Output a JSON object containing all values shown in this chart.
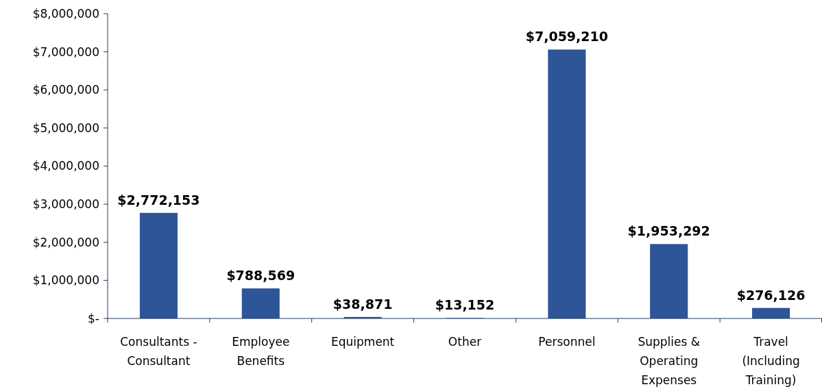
{
  "chart_data": {
    "type": "bar",
    "categories": [
      "Consultants - Consultant",
      "Employee Benefits",
      "Equipment",
      "Other",
      "Personnel",
      "Supplies & Operating Expenses",
      "Travel (Including Training)"
    ],
    "values": [
      2772153,
      788569,
      38871,
      13152,
      7059210,
      1953292,
      276126
    ],
    "value_labels": [
      "$2,772,153",
      "$788,569",
      "$38,871",
      "$13,152",
      "$7,059,210",
      "$1,953,292",
      "$276,126"
    ],
    "color": "#2e5597",
    "ylim": [
      0,
      8000000
    ],
    "yticks": [
      {
        "value": 0,
        "label": "$-"
      },
      {
        "value": 1000000,
        "label": "$1,000,000"
      },
      {
        "value": 2000000,
        "label": "$2,000,000"
      },
      {
        "value": 3000000,
        "label": "$3,000,000"
      },
      {
        "value": 4000000,
        "label": "$4,000,000"
      },
      {
        "value": 5000000,
        "label": "$5,000,000"
      },
      {
        "value": 6000000,
        "label": "$6,000,000"
      },
      {
        "value": 7000000,
        "label": "$7,000,000"
      },
      {
        "value": 8000000,
        "label": "$8,000,000"
      }
    ],
    "grid": false
  }
}
